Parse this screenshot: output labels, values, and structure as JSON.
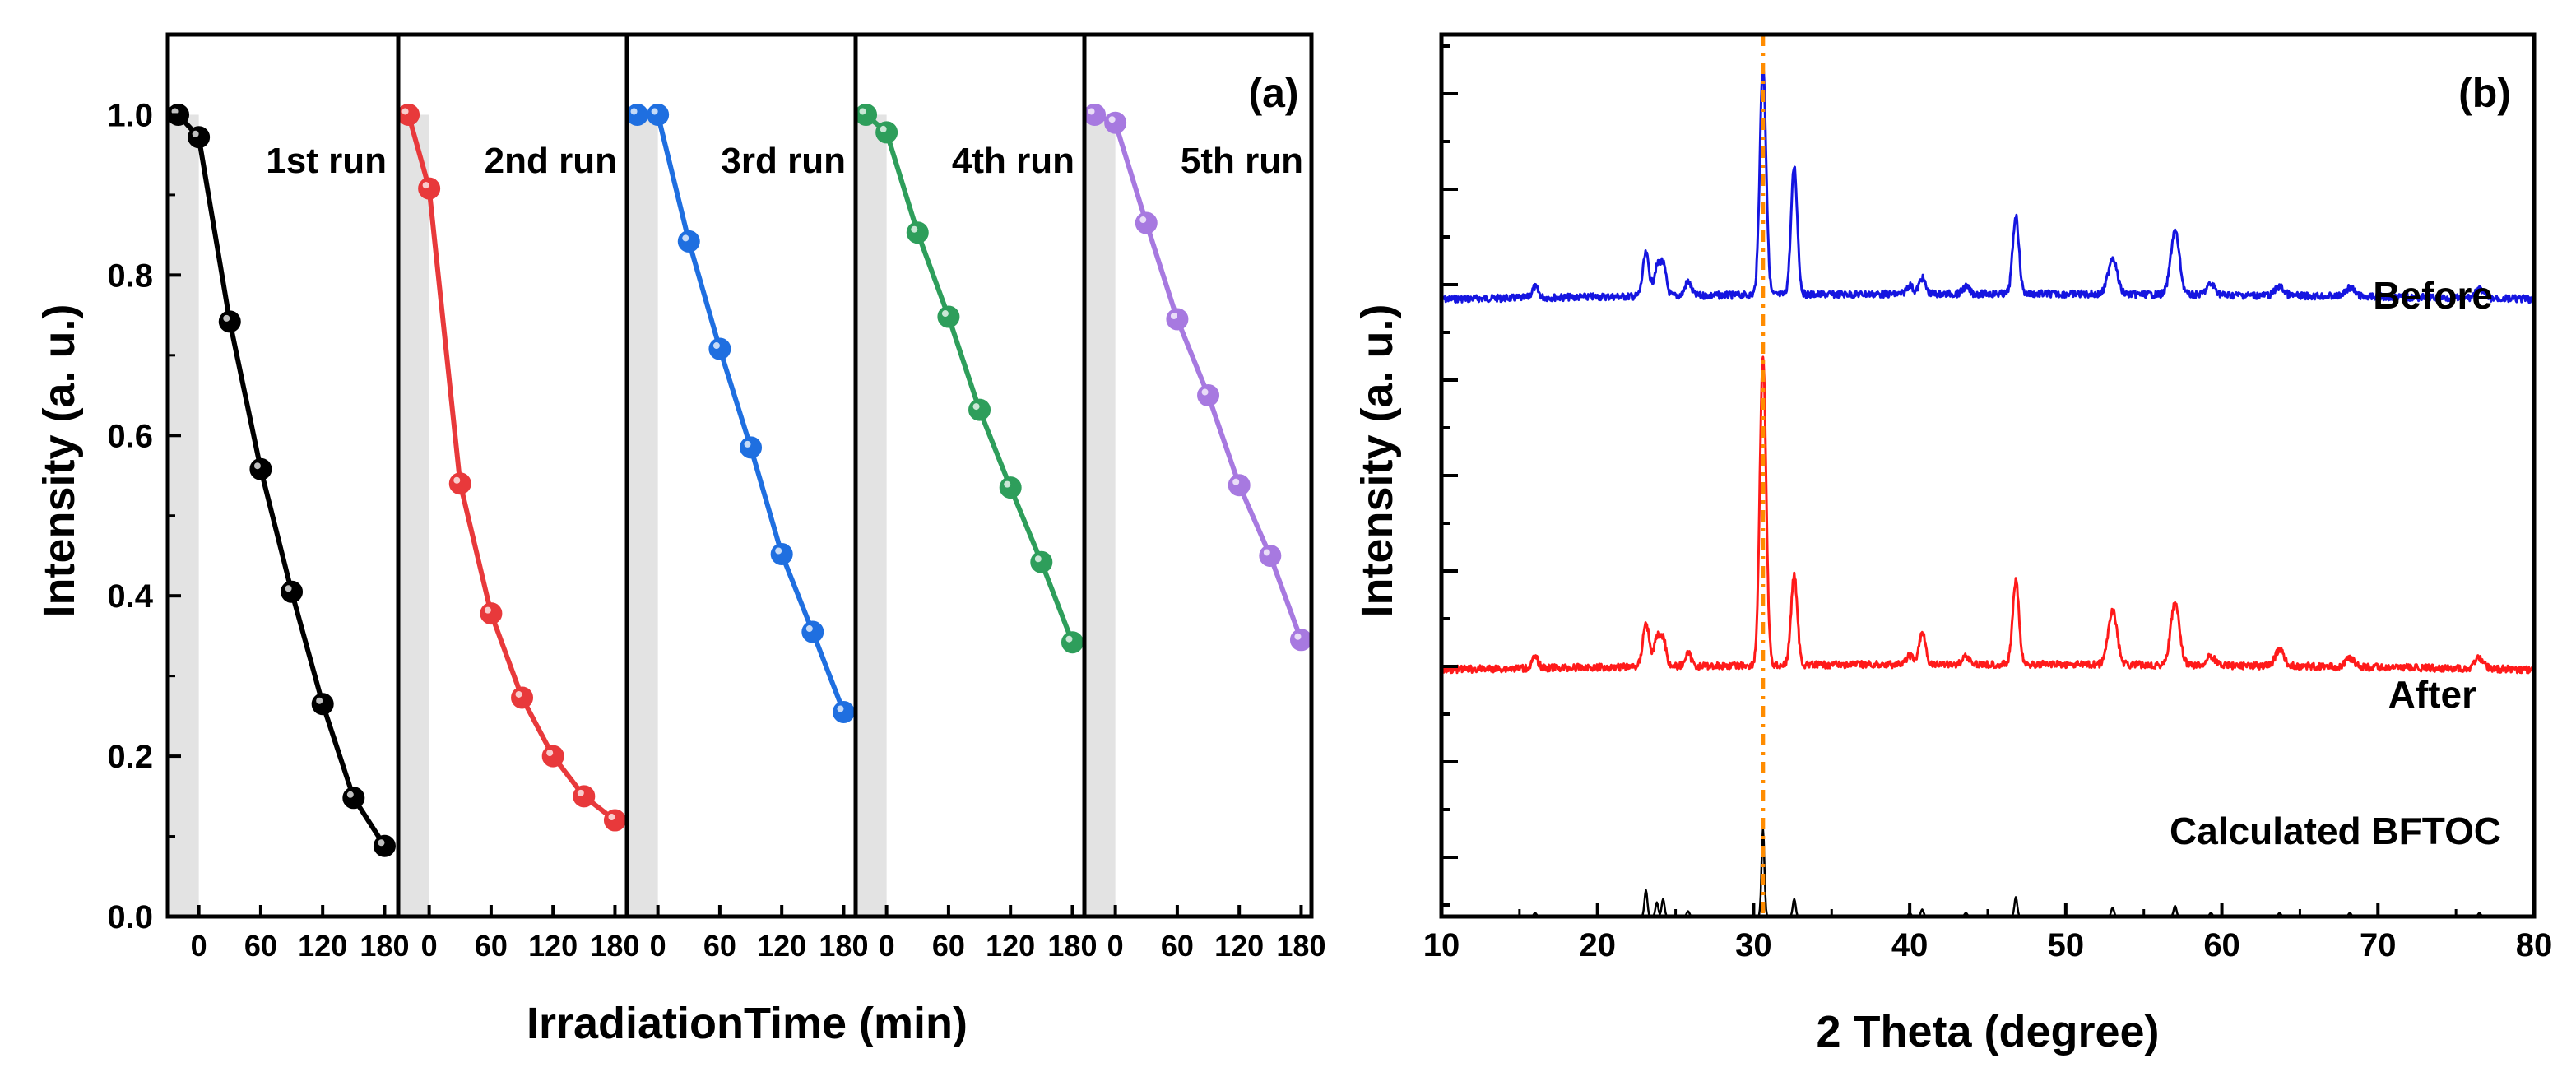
{
  "chart_data": [
    {
      "panel": "(a)",
      "type": "line",
      "ylabel": "Intensity (a. u.)",
      "xlabel": "IrradiationTime (min)",
      "ylim": [
        0.0,
        1.1
      ],
      "yticks": [
        "0.0",
        "0.2",
        "0.4",
        "0.6",
        "0.8",
        "1.0"
      ],
      "xlim": [
        -30,
        190
      ],
      "xticks": [
        0,
        60,
        120,
        180
      ],
      "xtick_labels": [
        "0",
        "60",
        "120",
        "180"
      ],
      "dark_shading": [
        -30,
        0
      ],
      "time_points": [
        -20,
        0,
        30,
        60,
        90,
        120,
        150,
        180
      ],
      "series": [
        {
          "name": "1st run",
          "color": "#000000",
          "values": [
            1.0,
            0.972,
            0.742,
            0.558,
            0.405,
            0.265,
            0.148,
            0.088
          ]
        },
        {
          "name": "2nd run",
          "color": "#e8393b",
          "values": [
            1.0,
            0.908,
            0.54,
            0.378,
            0.273,
            0.2,
            0.15,
            0.12
          ]
        },
        {
          "name": "3rd run",
          "color": "#1f6fe0",
          "values": [
            1.0,
            1.0,
            0.842,
            0.708,
            0.585,
            0.452,
            0.355,
            0.255
          ]
        },
        {
          "name": "4th run",
          "color": "#2e9e5b",
          "values": [
            1.0,
            0.978,
            0.853,
            0.748,
            0.632,
            0.535,
            0.442,
            0.342
          ]
        },
        {
          "name": "5th run",
          "color": "#a779e0",
          "values": [
            1.0,
            0.99,
            0.865,
            0.745,
            0.65,
            0.538,
            0.45,
            0.345
          ]
        }
      ]
    },
    {
      "panel": "(b)",
      "type": "line",
      "ylabel": "Intensity (a. u.)",
      "xlabel": "2 Theta (degree)",
      "xlim": [
        10,
        80
      ],
      "xticks": [
        10,
        20,
        30,
        40,
        50,
        60,
        70,
        80
      ],
      "xtick_labels": [
        "10",
        "20",
        "30",
        "40",
        "50",
        "60",
        "70",
        "80"
      ],
      "reference_line": {
        "x": 30.6,
        "color": "#ff8c00"
      },
      "peaks_2theta": [
        16.0,
        23.1,
        23.8,
        24.2,
        25.8,
        30.6,
        32.6,
        40.0,
        40.8,
        43.6,
        46.8,
        53.0,
        57.0,
        59.3,
        63.7,
        68.2,
        76.5
      ],
      "series": [
        {
          "name": "Before",
          "color": "#1515e0",
          "baseline": 0.3,
          "peak_heights": [
            0.012,
            0.048,
            0.03,
            0.034,
            0.016,
            0.26,
            0.145,
            0.01,
            0.018,
            0.008,
            0.088,
            0.042,
            0.072,
            0.012,
            0.01,
            0.01,
            0.01
          ]
        },
        {
          "name": "After",
          "color": "#ff1a1a",
          "baseline": 0.72,
          "peak_heights": [
            0.012,
            0.05,
            0.03,
            0.03,
            0.014,
            0.35,
            0.102,
            0.01,
            0.036,
            0.01,
            0.094,
            0.062,
            0.07,
            0.01,
            0.018,
            0.01,
            0.012
          ]
        },
        {
          "name": "Calculated BFTOC",
          "color": "#000000",
          "baseline": 1.0,
          "peak_heights": [
            0.004,
            0.03,
            0.016,
            0.02,
            0.006,
            0.1,
            0.02,
            0.004,
            0.008,
            0.004,
            0.022,
            0.01,
            0.012,
            0.004,
            0.004,
            0.004,
            0.004
          ]
        }
      ]
    }
  ]
}
